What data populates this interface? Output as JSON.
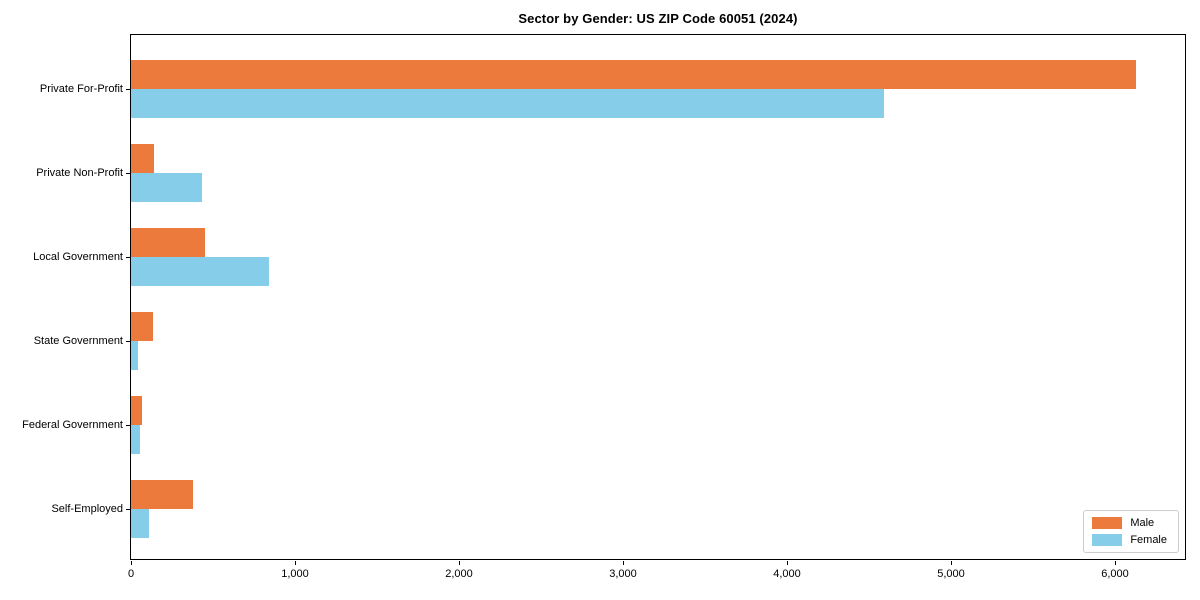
{
  "chart_data": {
    "type": "bar",
    "orientation": "horizontal",
    "title": "Sector by Gender: US ZIP Code 60051 (2024)",
    "xlabel": "",
    "ylabel": "",
    "categories": [
      "Private For-Profit",
      "Private Non-Profit",
      "Local Government",
      "State Government",
      "Federal Government",
      "Self-Employed"
    ],
    "series": [
      {
        "name": "Male",
        "color": "#ec7a3c",
        "values": [
          6130,
          140,
          450,
          135,
          65,
          380
        ]
      },
      {
        "name": "Female",
        "color": "#85cde8",
        "values": [
          4590,
          430,
          840,
          45,
          55,
          110
        ]
      }
    ],
    "xlim": [
      0,
      6430
    ],
    "x_ticks": [
      {
        "value": 0,
        "label": "0"
      },
      {
        "value": 1000,
        "label": "1,000"
      },
      {
        "value": 2000,
        "label": "2,000"
      },
      {
        "value": 3000,
        "label": "3,000"
      },
      {
        "value": 4000,
        "label": "4,000"
      },
      {
        "value": 5000,
        "label": "5,000"
      },
      {
        "value": 6000,
        "label": "6,000"
      }
    ],
    "legend_position": "lower right",
    "grid": false
  },
  "colors": {
    "male": "#ec7a3c",
    "female": "#85cde8",
    "axis": "#000000",
    "legend_border": "#cccccc",
    "background": "#ffffff"
  }
}
